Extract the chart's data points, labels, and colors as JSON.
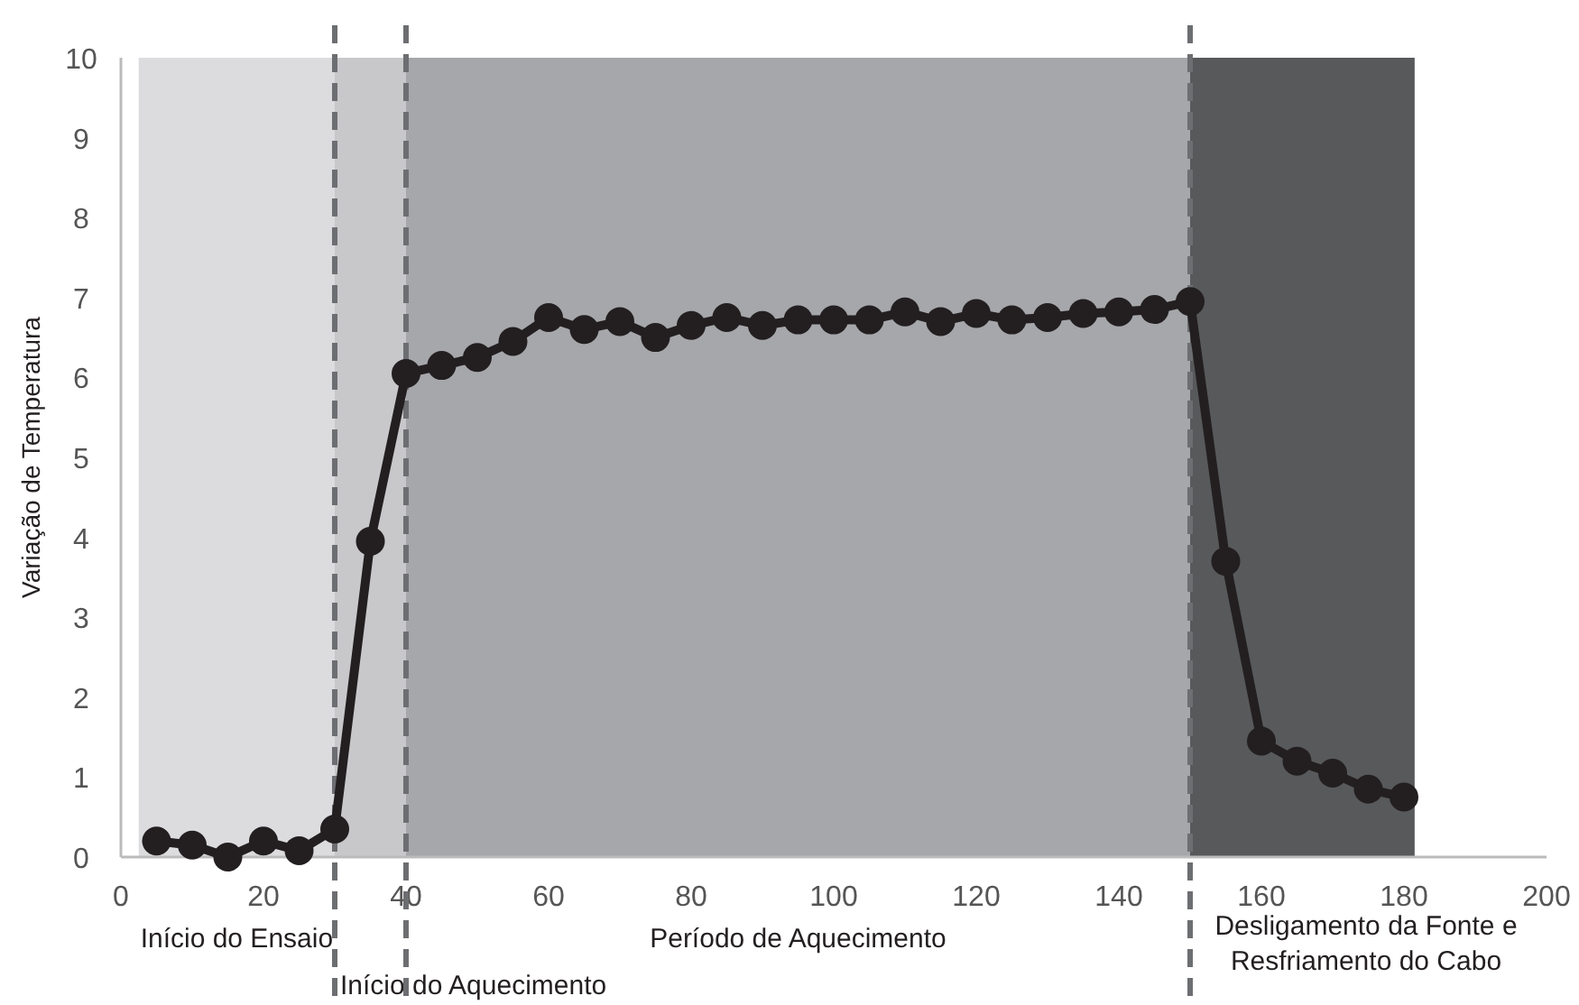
{
  "chart_data": {
    "type": "line",
    "ylabel": "Variação de Temperatura",
    "x": [
      5,
      10,
      15,
      20,
      25,
      30,
      35,
      40,
      45,
      50,
      55,
      60,
      65,
      70,
      75,
      80,
      85,
      90,
      95,
      100,
      105,
      110,
      115,
      120,
      125,
      130,
      135,
      140,
      145,
      150,
      155,
      160,
      165,
      170,
      175,
      180
    ],
    "series": [
      {
        "color": "#231f20",
        "values": [
          0.2,
          0.15,
          0.0,
          0.2,
          0.08,
          0.35,
          3.95,
          6.05,
          6.15,
          6.25,
          6.45,
          6.75,
          6.6,
          6.7,
          6.5,
          6.65,
          6.75,
          6.65,
          6.72,
          6.72,
          6.72,
          6.82,
          6.7,
          6.8,
          6.72,
          6.75,
          6.8,
          6.82,
          6.85,
          6.95,
          3.7,
          1.45,
          1.2,
          1.05,
          0.85,
          0.75
        ]
      }
    ],
    "xlim": [
      0,
      200
    ],
    "xticks": [
      0,
      20,
      40,
      60,
      80,
      100,
      120,
      140,
      160,
      180,
      200
    ],
    "ylim": [
      0,
      10
    ],
    "yticks": [
      0,
      1,
      2,
      3,
      4,
      5,
      6,
      7,
      8,
      9,
      10
    ],
    "grid": false,
    "marker": "circle",
    "line_style": "solid",
    "bands": [
      {
        "axis": "x",
        "from": 2.5,
        "to": 30,
        "label": "Início do Ensaio",
        "color": "#dcdcde"
      },
      {
        "axis": "x",
        "from": 30,
        "to": 40,
        "color": "#c8c8ca"
      },
      {
        "axis": "x",
        "from": 40,
        "to": 150,
        "label": "Período de Aquecimento",
        "color": "#a6a7aa"
      },
      {
        "axis": "x",
        "from": 150,
        "to": 181.5,
        "label": "Desligamento da Fonte e Resfriamento do Cabo",
        "color": "#58595b"
      }
    ],
    "ref_lines": [
      {
        "axis": "x",
        "value": 30,
        "label": "Início do Aquecimento",
        "color": "#6d6e71",
        "line_style": "dashed"
      },
      {
        "axis": "x",
        "value": 40,
        "color": "#6d6e71",
        "line_style": "dashed"
      },
      {
        "axis": "x",
        "value": 150,
        "color": "#6d6e71",
        "line_style": "dashed"
      }
    ]
  }
}
